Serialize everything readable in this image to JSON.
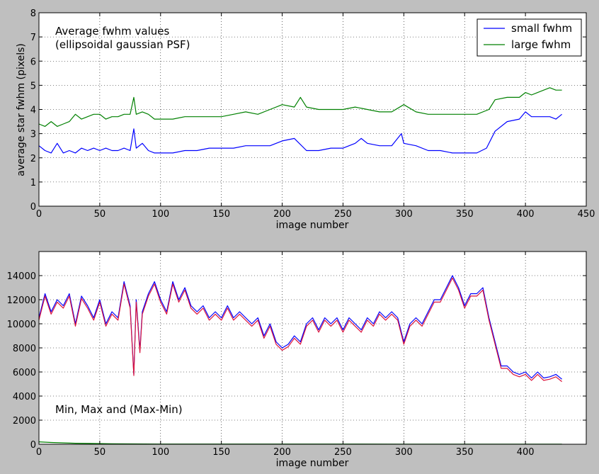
{
  "chart_data": [
    {
      "type": "line",
      "annotation": [
        "Average fwhm values",
        "(ellipsoidal gaussian PSF)"
      ],
      "xlabel": "image number",
      "ylabel": "average star fwhm (pixels)",
      "xlim": [
        0,
        450
      ],
      "ylim": [
        0,
        8
      ],
      "xticks": [
        0,
        50,
        100,
        150,
        200,
        250,
        300,
        350,
        400,
        450
      ],
      "yticks": [
        0,
        1,
        2,
        3,
        4,
        5,
        6,
        7,
        8
      ],
      "grid": true,
      "legend_position": "top-right",
      "series": [
        {
          "name": "small fwhm",
          "color": "#0000ff",
          "x": [
            0,
            5,
            10,
            15,
            20,
            25,
            30,
            35,
            40,
            45,
            50,
            55,
            60,
            65,
            70,
            75,
            78,
            80,
            85,
            90,
            95,
            100,
            110,
            120,
            130,
            140,
            150,
            160,
            170,
            180,
            190,
            200,
            210,
            220,
            230,
            240,
            250,
            260,
            265,
            270,
            280,
            290,
            298,
            300,
            310,
            320,
            330,
            340,
            350,
            360,
            368,
            375,
            385,
            395,
            400,
            405,
            410,
            415,
            420,
            425,
            430
          ],
          "y": [
            2.5,
            2.3,
            2.2,
            2.6,
            2.2,
            2.3,
            2.2,
            2.4,
            2.3,
            2.4,
            2.3,
            2.4,
            2.3,
            2.3,
            2.4,
            2.3,
            3.2,
            2.4,
            2.6,
            2.3,
            2.2,
            2.2,
            2.2,
            2.3,
            2.3,
            2.4,
            2.4,
            2.4,
            2.5,
            2.5,
            2.5,
            2.7,
            2.8,
            2.3,
            2.3,
            2.4,
            2.4,
            2.6,
            2.8,
            2.6,
            2.5,
            2.5,
            3.0,
            2.6,
            2.5,
            2.3,
            2.3,
            2.2,
            2.2,
            2.2,
            2.4,
            3.1,
            3.5,
            3.6,
            3.9,
            3.7,
            3.7,
            3.7,
            3.7,
            3.6,
            3.8
          ]
        },
        {
          "name": "large fwhm",
          "color": "#008000",
          "x": [
            0,
            5,
            10,
            15,
            20,
            25,
            30,
            35,
            40,
            45,
            50,
            55,
            60,
            65,
            70,
            75,
            78,
            80,
            85,
            90,
            95,
            100,
            110,
            120,
            130,
            140,
            150,
            160,
            170,
            180,
            190,
            200,
            210,
            215,
            220,
            230,
            240,
            250,
            260,
            270,
            280,
            290,
            300,
            310,
            320,
            330,
            340,
            350,
            360,
            370,
            375,
            385,
            395,
            400,
            405,
            410,
            415,
            420,
            425,
            430
          ],
          "y": [
            3.4,
            3.3,
            3.5,
            3.3,
            3.4,
            3.5,
            3.8,
            3.6,
            3.7,
            3.8,
            3.8,
            3.6,
            3.7,
            3.7,
            3.8,
            3.8,
            4.5,
            3.8,
            3.9,
            3.8,
            3.6,
            3.6,
            3.6,
            3.7,
            3.7,
            3.7,
            3.7,
            3.8,
            3.9,
            3.8,
            4.0,
            4.2,
            4.1,
            4.5,
            4.1,
            4.0,
            4.0,
            4.0,
            4.1,
            4.0,
            3.9,
            3.9,
            4.2,
            3.9,
            3.8,
            3.8,
            3.8,
            3.8,
            3.8,
            4.0,
            4.4,
            4.5,
            4.5,
            4.7,
            4.6,
            4.7,
            4.8,
            4.9,
            4.8,
            4.8
          ]
        }
      ]
    },
    {
      "type": "line",
      "annotation": [
        "Min, Max and (Max-Min)"
      ],
      "xlabel": "image number",
      "ylabel": "",
      "xlim": [
        0,
        450
      ],
      "ylim": [
        0,
        16000
      ],
      "xticks": [
        0,
        50,
        100,
        150,
        200,
        250,
        300,
        350,
        400
      ],
      "yticks": [
        0,
        2000,
        4000,
        6000,
        8000,
        10000,
        12000,
        14000
      ],
      "grid": true,
      "series": [
        {
          "color": "#0000ff",
          "x": [
            0,
            5,
            10,
            15,
            20,
            25,
            30,
            35,
            40,
            45,
            50,
            55,
            60,
            65,
            70,
            75,
            78,
            80,
            83,
            85,
            90,
            95,
            100,
            105,
            110,
            115,
            120,
            125,
            130,
            135,
            140,
            145,
            150,
            155,
            160,
            165,
            170,
            175,
            180,
            185,
            190,
            195,
            200,
            205,
            210,
            215,
            220,
            225,
            230,
            235,
            240,
            245,
            250,
            255,
            260,
            265,
            270,
            275,
            280,
            285,
            290,
            295,
            300,
            305,
            310,
            315,
            320,
            325,
            330,
            335,
            340,
            345,
            350,
            355,
            360,
            365,
            370,
            375,
            380,
            385,
            390,
            395,
            400,
            405,
            410,
            415,
            420,
            425,
            430
          ],
          "y": [
            10500,
            12500,
            11000,
            12000,
            11500,
            12500,
            10000,
            12300,
            11500,
            10500,
            12000,
            10000,
            11000,
            10500,
            13500,
            11500,
            5800,
            12000,
            7800,
            11000,
            12500,
            13500,
            12000,
            11000,
            13500,
            12000,
            13000,
            11500,
            11000,
            11500,
            10500,
            11000,
            10500,
            11500,
            10500,
            11000,
            10500,
            10000,
            10500,
            9000,
            10000,
            8500,
            8000,
            8300,
            9000,
            8500,
            10000,
            10500,
            9500,
            10500,
            10000,
            10500,
            9500,
            10500,
            10000,
            9500,
            10500,
            10000,
            11000,
            10500,
            11000,
            10500,
            8500,
            10000,
            10500,
            10000,
            11000,
            12000,
            12000,
            13000,
            14000,
            13000,
            11500,
            12500,
            12500,
            13000,
            10500,
            8500,
            6500,
            6500,
            6000,
            5800,
            6000,
            5500,
            6000,
            5500,
            5600,
            5800,
            5400
          ]
        },
        {
          "color": "#dc143c",
          "x": [
            0,
            5,
            10,
            15,
            20,
            25,
            30,
            35,
            40,
            45,
            50,
            55,
            60,
            65,
            70,
            75,
            78,
            80,
            83,
            85,
            90,
            95,
            100,
            105,
            110,
            115,
            120,
            125,
            130,
            135,
            140,
            145,
            150,
            155,
            160,
            165,
            170,
            175,
            180,
            185,
            190,
            195,
            200,
            205,
            210,
            215,
            220,
            225,
            230,
            235,
            240,
            245,
            250,
            255,
            260,
            265,
            270,
            275,
            280,
            285,
            290,
            295,
            300,
            305,
            310,
            315,
            320,
            325,
            330,
            335,
            340,
            345,
            350,
            355,
            360,
            365,
            370,
            375,
            380,
            385,
            390,
            395,
            400,
            405,
            410,
            415,
            420,
            425,
            430
          ],
          "y": [
            10300,
            12300,
            10800,
            11800,
            11300,
            12300,
            9800,
            12100,
            11300,
            10300,
            11800,
            9800,
            10800,
            10300,
            13300,
            11300,
            5700,
            11800,
            7600,
            10800,
            12300,
            13300,
            11800,
            10800,
            13300,
            11800,
            12800,
            11300,
            10800,
            11300,
            10300,
            10800,
            10300,
            11300,
            10300,
            10800,
            10300,
            9800,
            10300,
            8800,
            9800,
            8300,
            7800,
            8100,
            8800,
            8300,
            9800,
            10300,
            9300,
            10300,
            9800,
            10300,
            9300,
            10300,
            9800,
            9300,
            10300,
            9800,
            10800,
            10300,
            10800,
            10300,
            8300,
            9800,
            10300,
            9800,
            10800,
            11800,
            11800,
            12800,
            13800,
            12800,
            11300,
            12300,
            12300,
            12800,
            10300,
            8300,
            6300,
            6300,
            5800,
            5600,
            5800,
            5300,
            5800,
            5300,
            5400,
            5600,
            5200
          ]
        },
        {
          "color": "#008000",
          "x": [
            0,
            10,
            30,
            60,
            100,
            200,
            300,
            400,
            430
          ],
          "y": [
            200,
            150,
            80,
            40,
            20,
            15,
            10,
            10,
            10
          ]
        }
      ]
    }
  ]
}
